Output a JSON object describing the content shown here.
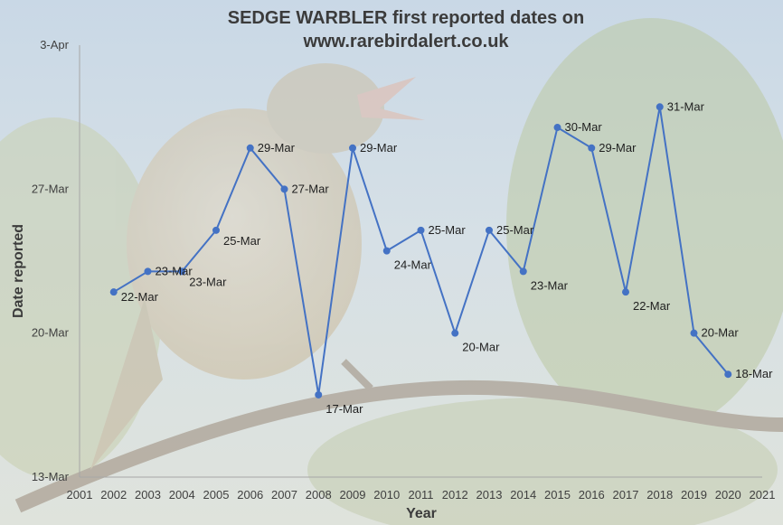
{
  "chart_data": {
    "type": "line",
    "title_lines": [
      "SEDGE WARBLER first reported dates on",
      "www.rarebirdalert.co.uk"
    ],
    "xlabel": "Year",
    "ylabel": "Date reported",
    "x_ticks": [
      "2001",
      "2002",
      "2003",
      "2004",
      "2005",
      "2006",
      "2007",
      "2008",
      "2009",
      "2010",
      "2011",
      "2012",
      "2013",
      "2014",
      "2015",
      "2016",
      "2017",
      "2018",
      "2019",
      "2020",
      "2021"
    ],
    "y_ticks": [
      "13-Mar",
      "20-Mar",
      "27-Mar",
      "3-Apr"
    ],
    "xlim": [
      2001,
      2021
    ],
    "ylim": [
      "13-Mar",
      "3-Apr"
    ],
    "grid": false,
    "line_color": "#4472c4",
    "series": [
      {
        "x": [
          2002,
          2003,
          2004,
          2005,
          2006,
          2007,
          2008,
          2009,
          2010,
          2011,
          2012,
          2013,
          2014,
          2015,
          2016,
          2017,
          2018,
          2019,
          2020
        ],
        "labels": [
          "22-Mar",
          "23-Mar",
          "23-Mar",
          "25-Mar",
          "29-Mar",
          "27-Mar",
          "17-Mar",
          "29-Mar",
          "24-Mar",
          "25-Mar",
          "20-Mar",
          "25-Mar",
          "23-Mar",
          "30-Mar",
          "29-Mar",
          "22-Mar",
          "31-Mar",
          "20-Mar",
          "18-Mar"
        ]
      }
    ]
  }
}
